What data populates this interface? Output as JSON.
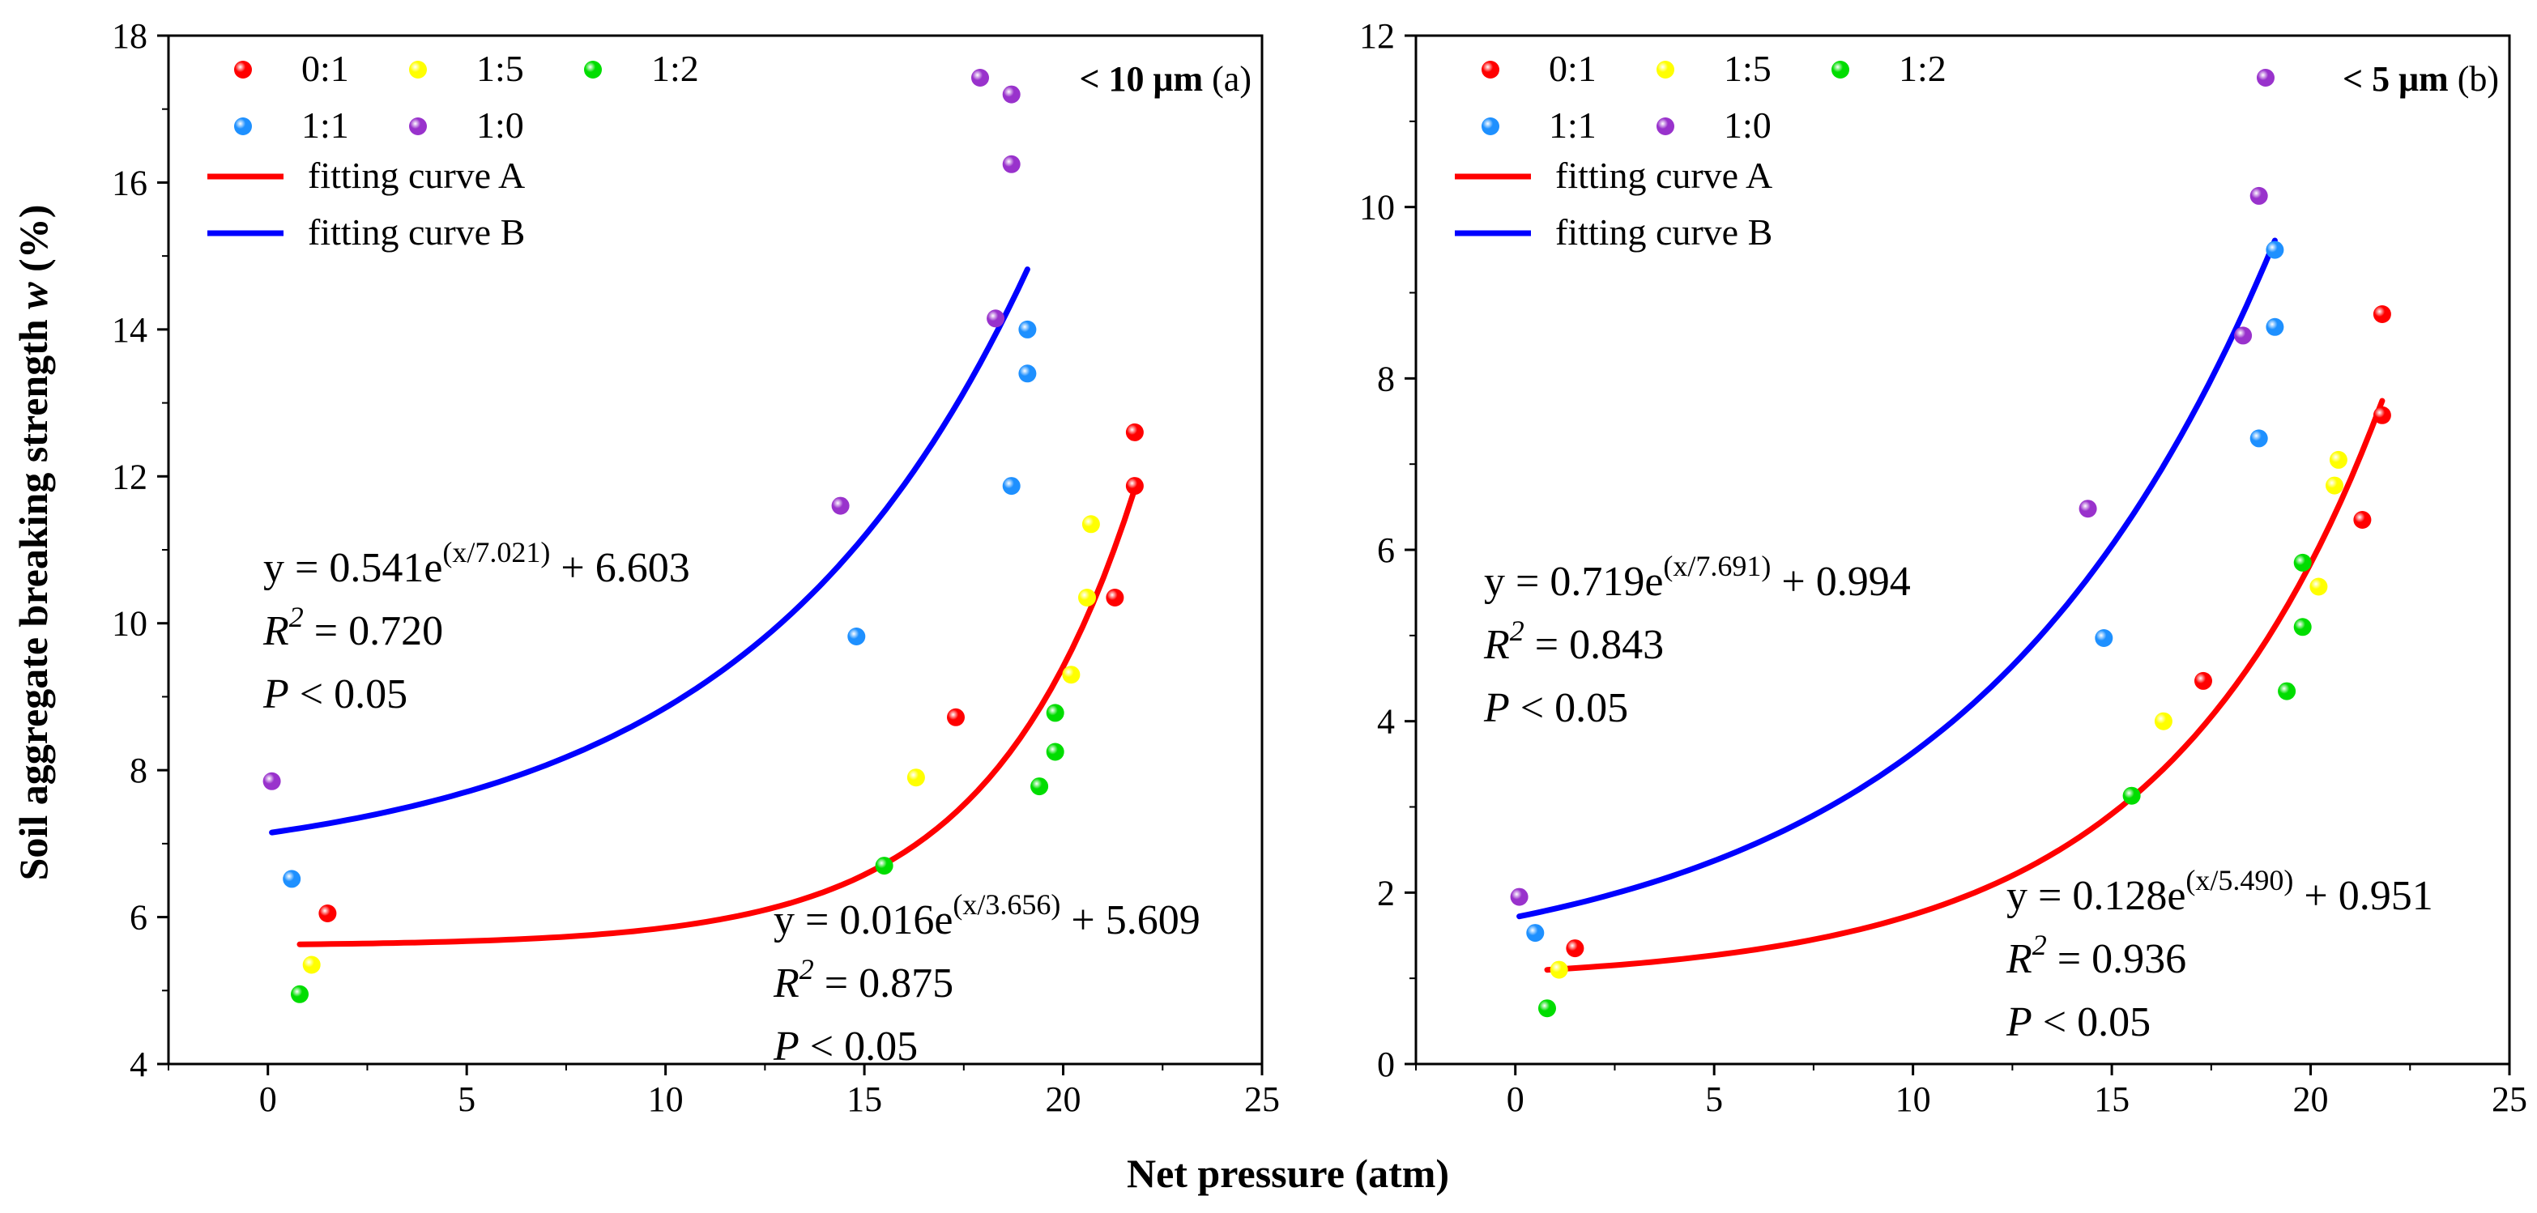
{
  "figure": {
    "xlabel": "Net pressure (atm)",
    "ylabel_prefix": "Soil aggregate breaking strength ",
    "ylabel_var": "w",
    "ylabel_suffix": " (%)"
  },
  "legend": {
    "series": [
      {
        "key": "0:1",
        "label": "0:1",
        "color": "#ff0000"
      },
      {
        "key": "1:5",
        "label": "1:5",
        "color": "#ffff00"
      },
      {
        "key": "1:2",
        "label": "1:2",
        "color": "#00dd00"
      },
      {
        "key": "1:1",
        "label": "1:1",
        "color": "#1e90ff"
      },
      {
        "key": "1:0",
        "label": "1:0",
        "color": "#9932cc"
      }
    ],
    "curves": [
      {
        "key": "A",
        "label": "fitting curve A",
        "color": "#ff0000"
      },
      {
        "key": "B",
        "label": "fitting curve B",
        "color": "#0000ff"
      }
    ]
  },
  "chart_data": [
    {
      "type": "scatter",
      "panel": "(a)",
      "size_tag": "< 10 μm",
      "xlim": [
        -2.5,
        25
      ],
      "ylim": [
        4,
        18
      ],
      "xticks": [
        0,
        5,
        10,
        15,
        20,
        25
      ],
      "yticks": [
        4,
        6,
        8,
        10,
        12,
        14,
        16,
        18
      ],
      "grid": false,
      "legend_position": "top-left",
      "series": [
        {
          "name": "0:1",
          "points": [
            [
              1.5,
              6.05
            ],
            [
              17.3,
              8.72
            ],
            [
              21.3,
              10.35
            ],
            [
              21.8,
              11.87
            ],
            [
              21.8,
              12.6
            ]
          ]
        },
        {
          "name": "1:5",
          "points": [
            [
              1.1,
              5.35
            ],
            [
              16.3,
              7.9
            ],
            [
              20.2,
              9.3
            ],
            [
              20.6,
              10.35
            ],
            [
              20.7,
              11.35
            ]
          ]
        },
        {
          "name": "1:2",
          "points": [
            [
              0.8,
              4.95
            ],
            [
              15.5,
              6.7
            ],
            [
              19.4,
              7.78
            ],
            [
              19.8,
              8.25
            ],
            [
              19.8,
              8.78
            ]
          ]
        },
        {
          "name": "1:1",
          "points": [
            [
              0.6,
              6.52
            ],
            [
              14.8,
              9.82
            ],
            [
              18.7,
              11.87
            ],
            [
              19.1,
              13.4
            ],
            [
              19.1,
              14.0
            ]
          ]
        },
        {
          "name": "1:0",
          "points": [
            [
              0.1,
              7.85
            ],
            [
              14.4,
              11.6
            ],
            [
              18.3,
              14.15
            ],
            [
              18.7,
              16.25
            ],
            [
              18.7,
              17.2
            ]
          ]
        }
      ],
      "fits": [
        {
          "name": "A",
          "a": 0.016,
          "t": 3.656,
          "c": 5.609,
          "x_range": [
            0.8,
            21.8
          ],
          "eq_lead": "y = 0.016e",
          "eq_exp": "(x/3.656)",
          "eq_tail": " + 5.609",
          "r2_label": "R",
          "r2_value": " = 0.875",
          "p_label": "P",
          "p_value": " < 0.05"
        },
        {
          "name": "B",
          "a": 0.541,
          "t": 7.021,
          "c": 6.603,
          "x_range": [
            0.1,
            19.1
          ],
          "eq_lead": "y = 0.541e",
          "eq_exp": "(x/7.021)",
          "eq_tail": " + 6.603",
          "r2_label": "R",
          "r2_value": " = 0.720",
          "p_label": "P",
          "p_value": " < 0.05"
        }
      ]
    },
    {
      "type": "scatter",
      "panel": "(b)",
      "size_tag": "< 5 μm",
      "xlim": [
        -2.5,
        25
      ],
      "ylim": [
        0,
        12
      ],
      "xticks": [
        0,
        5,
        10,
        15,
        20,
        25
      ],
      "yticks": [
        0,
        2,
        4,
        6,
        8,
        10,
        12
      ],
      "grid": false,
      "legend_position": "top-left",
      "series": [
        {
          "name": "0:1",
          "points": [
            [
              1.5,
              1.35
            ],
            [
              17.3,
              4.47
            ],
            [
              21.3,
              6.35
            ],
            [
              21.8,
              7.57
            ],
            [
              21.8,
              8.75
            ]
          ]
        },
        {
          "name": "1:5",
          "points": [
            [
              1.1,
              1.1
            ],
            [
              16.3,
              4.0
            ],
            [
              20.2,
              5.57
            ],
            [
              20.6,
              6.75
            ],
            [
              20.7,
              7.05
            ]
          ]
        },
        {
          "name": "1:2",
          "points": [
            [
              0.8,
              0.65
            ],
            [
              15.5,
              3.13
            ],
            [
              19.4,
              4.35
            ],
            [
              19.8,
              5.1
            ],
            [
              19.8,
              5.85
            ]
          ]
        },
        {
          "name": "1:1",
          "points": [
            [
              0.5,
              1.53
            ],
            [
              14.8,
              4.97
            ],
            [
              18.7,
              7.3
            ],
            [
              19.1,
              8.6
            ],
            [
              19.1,
              9.5
            ]
          ]
        },
        {
          "name": "1:0",
          "points": [
            [
              0.1,
              1.95
            ],
            [
              14.4,
              6.48
            ],
            [
              18.3,
              8.5
            ],
            [
              18.7,
              10.13
            ]
          ]
        }
      ],
      "fits": [
        {
          "name": "A",
          "a": 0.128,
          "t": 5.49,
          "c": 0.951,
          "x_range": [
            0.8,
            21.8
          ],
          "eq_lead": "y = 0.128e",
          "eq_exp": "(x/5.490)",
          "eq_tail": " + 0.951",
          "r2_label": "R",
          "r2_value": " = 0.936",
          "p_label": "P",
          "p_value": " < 0.05"
        },
        {
          "name": "B",
          "a": 0.719,
          "t": 7.691,
          "c": 0.994,
          "x_range": [
            0.1,
            19.1
          ],
          "eq_lead": "y = 0.719e",
          "eq_exp": "(x/7.691)",
          "eq_tail": " + 0.994",
          "r2_label": "R",
          "r2_value": " = 0.843",
          "p_label": "P",
          "p_value": " < 0.05"
        }
      ]
    }
  ]
}
